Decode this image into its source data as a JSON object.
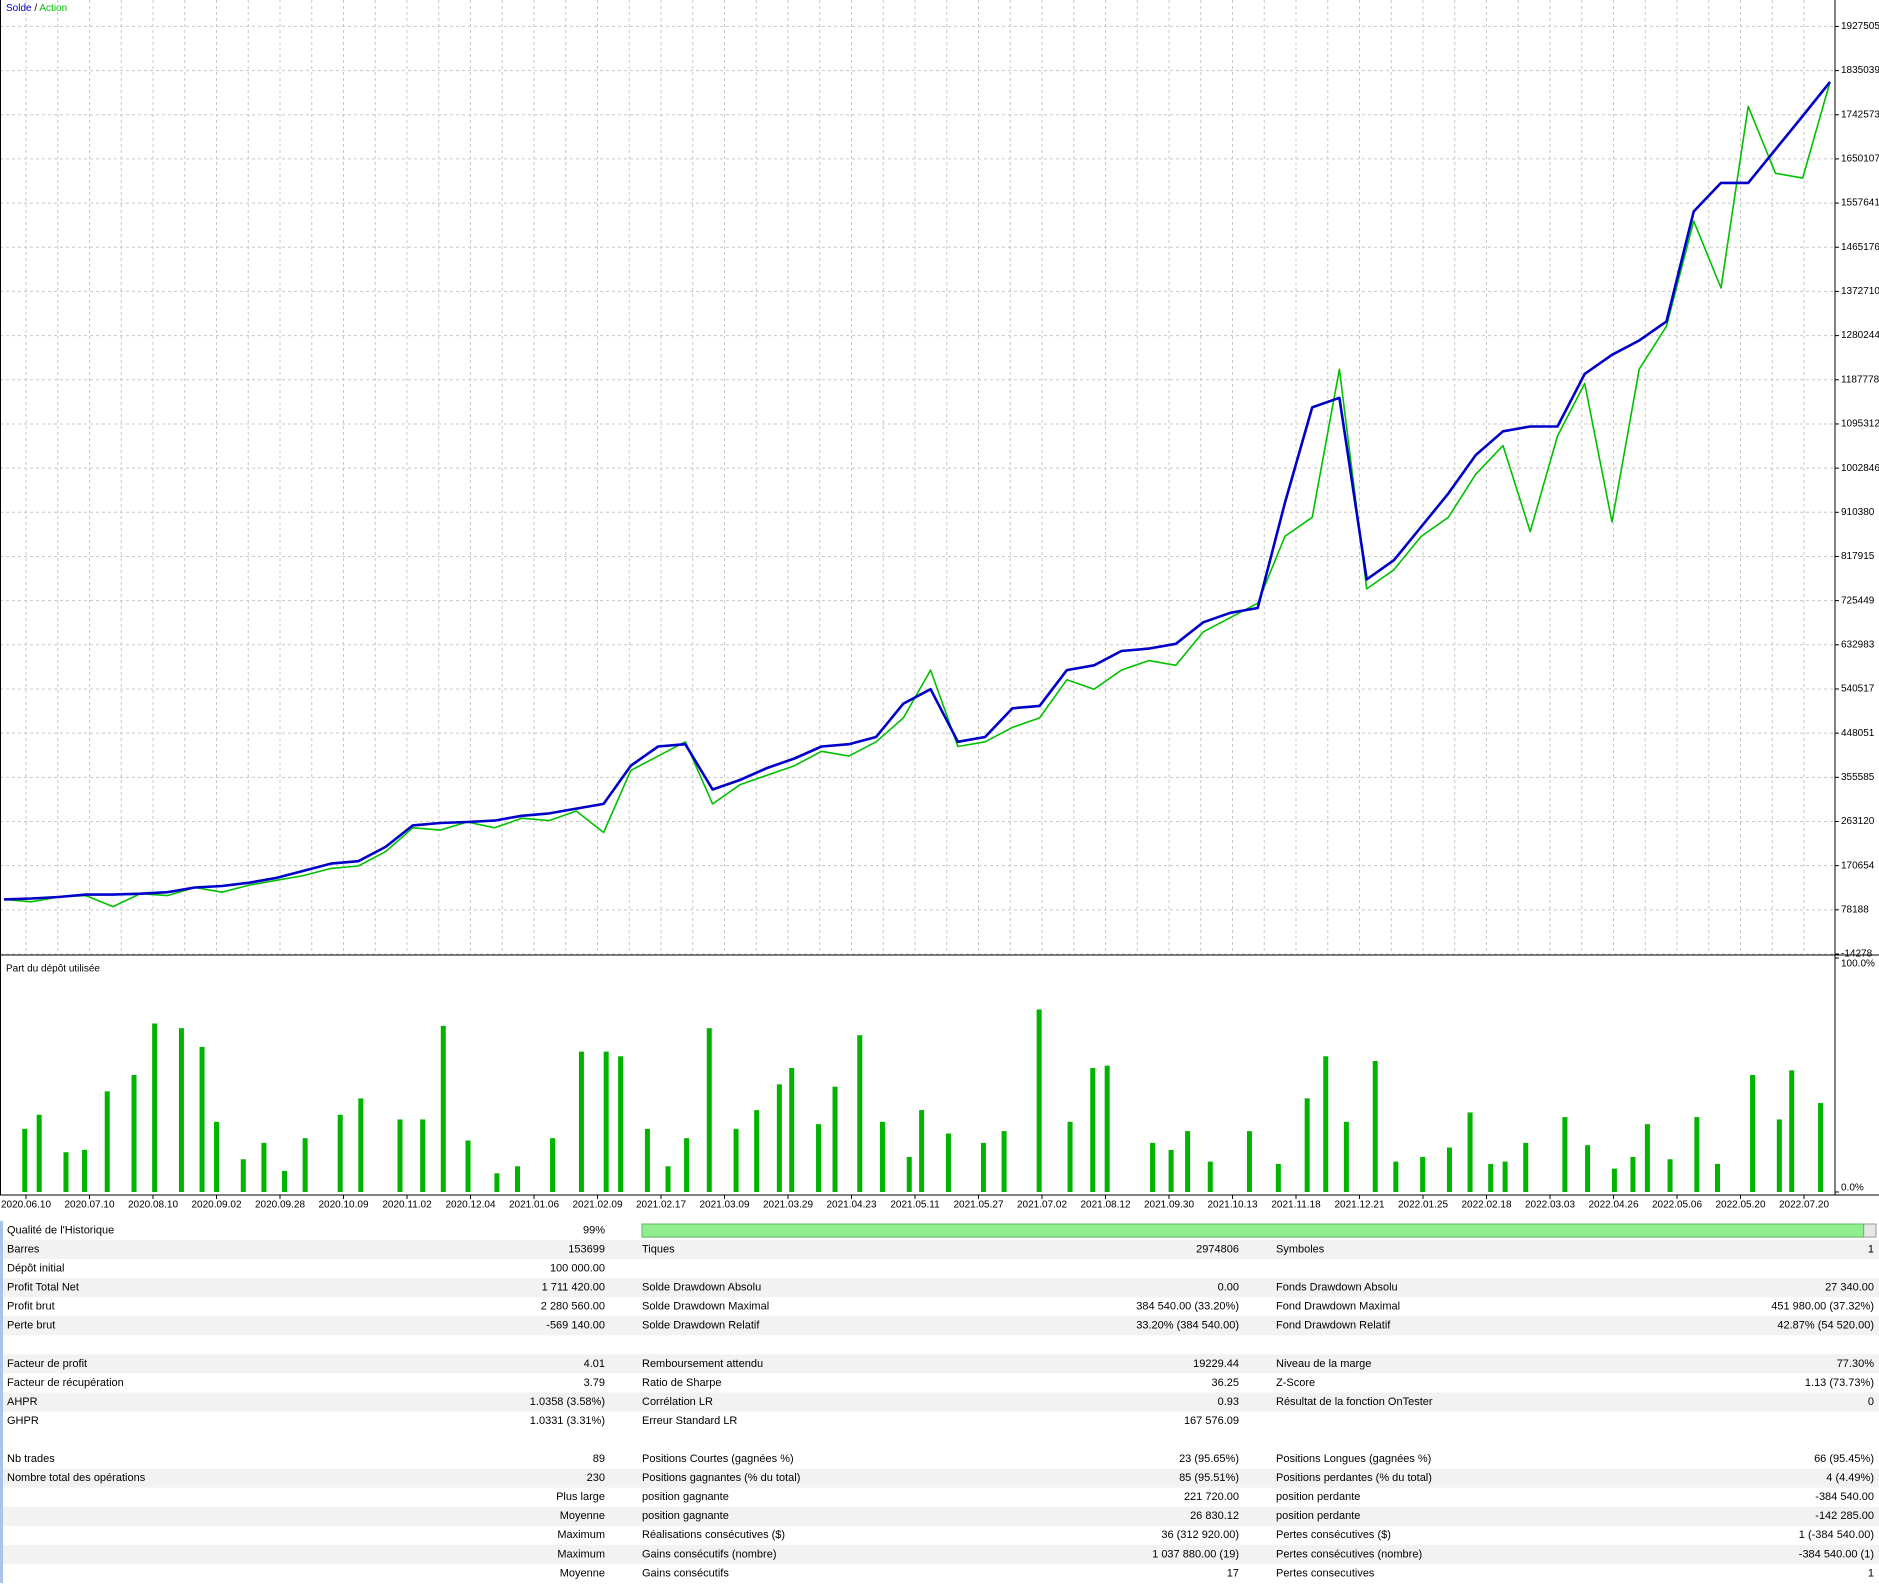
{
  "chart_data": [
    {
      "type": "line",
      "legend_separator": "/",
      "series": [
        {
          "name": "Solde",
          "color": "#0000c8",
          "values": [
            100000,
            102000,
            105000,
            110000,
            110000,
            112000,
            115000,
            125000,
            128000,
            135000,
            145000,
            160000,
            175000,
            180000,
            210000,
            255000,
            260000,
            262000,
            265000,
            275000,
            280000,
            290000,
            300000,
            380000,
            420000,
            425000,
            330000,
            350000,
            375000,
            395000,
            420000,
            425000,
            440000,
            510000,
            540000,
            430000,
            440000,
            500000,
            505000,
            580000,
            590000,
            620000,
            625000,
            635000,
            680000,
            700000,
            710000,
            930000,
            1130000,
            1150000,
            770000,
            810000,
            880000,
            950000,
            1030000,
            1080000,
            1090000,
            1090000,
            1200000,
            1240000,
            1270000,
            1310000,
            1540000,
            1600000,
            1600000,
            1670000,
            1740000,
            1811420
          ]
        },
        {
          "name": "Action",
          "color": "#00c000",
          "values": [
            100000,
            95000,
            105000,
            108000,
            85000,
            112000,
            108000,
            125000,
            115000,
            130000,
            140000,
            150000,
            165000,
            170000,
            200000,
            250000,
            245000,
            262000,
            250000,
            270000,
            265000,
            285000,
            240000,
            370000,
            400000,
            430000,
            300000,
            340000,
            360000,
            380000,
            410000,
            400000,
            430000,
            480000,
            580000,
            420000,
            430000,
            460000,
            480000,
            560000,
            540000,
            580000,
            600000,
            590000,
            660000,
            690000,
            720000,
            860000,
            900000,
            1210000,
            750000,
            790000,
            860000,
            900000,
            990000,
            1050000,
            870000,
            1070000,
            1180000,
            890000,
            1210000,
            1300000,
            1520000,
            1380000,
            1760000,
            1620000,
            1610000,
            1811420
          ]
        }
      ],
      "ylim": [
        -14278,
        1982795
      ],
      "yticks": [
        1927505,
        1835039,
        1742573,
        1650107,
        1557641,
        1465176,
        1372710,
        1280244,
        1187778,
        1095312,
        1002846,
        910380,
        817915,
        725449,
        632983,
        540517,
        448051,
        355585,
        263120,
        170654,
        78188,
        -14278
      ],
      "grid": true
    },
    {
      "type": "bar",
      "title": "Part du dépôt utilisée",
      "color": "#00b400",
      "x": [
        1.2,
        1.9,
        3.2,
        4.1,
        5.2,
        6.5,
        7.5,
        8.8,
        9.8,
        10.5,
        11.8,
        12.8,
        13.8,
        14.8,
        16.5,
        17.5,
        19.4,
        20.5,
        21.5,
        22.7,
        24.1,
        25.1,
        26.8,
        28.2,
        29.4,
        30.1,
        31.4,
        32.4,
        33.3,
        34.4,
        35.7,
        36.7,
        37.8,
        38.4,
        39.7,
        40.5,
        41.7,
        42.8,
        44.1,
        44.7,
        46.0,
        47.7,
        48.7,
        50.4,
        51.9,
        53.0,
        53.7,
        55.9,
        56.8,
        57.6,
        58.7,
        60.6,
        62.0,
        63.4,
        64.3,
        65.3,
        66.7,
        67.7,
        69.0,
        70.3,
        71.3,
        72.3,
        73.0,
        74.0,
        75.9,
        77.0,
        78.3,
        79.2,
        79.9,
        81.0,
        82.3,
        83.3,
        85.0,
        86.3,
        86.9,
        88.3
      ],
      "values": [
        27,
        33,
        17,
        18,
        43,
        50,
        72,
        70,
        62,
        30,
        14,
        21,
        9,
        23,
        33,
        40,
        31,
        31,
        71,
        22,
        8,
        11,
        23,
        60,
        60,
        58,
        27,
        11,
        23,
        70,
        27,
        35,
        46,
        53,
        29,
        45,
        67,
        30,
        15,
        35,
        25,
        21,
        26,
        78,
        30,
        53,
        54,
        21,
        18,
        26,
        13,
        26,
        12,
        40,
        58,
        30,
        56,
        13,
        15,
        19,
        34,
        12,
        13,
        21,
        32,
        20,
        10,
        15,
        29,
        14,
        32,
        12,
        50,
        31,
        52,
        38
      ],
      "xlim": [
        0,
        89
      ],
      "ylim": [
        0,
        100
      ],
      "yticks": [
        {
          "value": 100,
          "label": "100.0%"
        },
        {
          "value": 0,
          "label": "0.0%"
        }
      ],
      "date_labels": [
        "2020.06.10",
        "2020.07.10",
        "2020.08.10",
        "2020.09.02",
        "2020.09.28",
        "2020.10.09",
        "2020.11.02",
        "2020.12.04",
        "2021.01.06",
        "2021.02.09",
        "2021.02.17",
        "2021.03.09",
        "2021.03.29",
        "2021.04.23",
        "2021.05.11",
        "2021.05.27",
        "2021.07.02",
        "2021.08.12",
        "2021.09.30",
        "2021.10.13",
        "2021.11.18",
        "2021.12.21",
        "2022.01.25",
        "2022.02.18",
        "2022.03.03",
        "2022.04.26",
        "2022.05.06",
        "2022.05.20",
        "2022.07.20"
      ]
    }
  ],
  "report": {
    "quality_bar": 99,
    "sections": [
      [
        [
          "Qualité de l'Historique",
          "99%"
        ],
        [
          "Barres",
          "153699",
          "Tiques",
          "2974806",
          "Symboles",
          "1"
        ],
        [
          "Dépôt initial",
          "100 000.00"
        ],
        [
          "Profit Total Net",
          "1 711 420.00",
          "Solde Drawdown Absolu",
          "0.00",
          "Fonds Drawdown Absolu",
          "27 340.00"
        ],
        [
          "Profit brut",
          "2 280 560.00",
          "Solde Drawdown Maximal",
          "384 540.00 (33.20%)",
          "Fond Drawdown Maximal",
          "451 980.00 (37.32%)"
        ],
        [
          "Perte brut",
          "-569 140.00",
          "Solde Drawdown Relatif",
          "33.20% (384 540.00)",
          "Fond Drawdown Relatif",
          "42.87% (54 520.00)"
        ]
      ],
      [
        [
          "Facteur de profit",
          "4.01",
          "Remboursement attendu",
          "19229.44",
          "Niveau de la marge",
          "77.30%"
        ],
        [
          "Facteur de récupération",
          "3.79",
          "Ratio de Sharpe",
          "36.25",
          "Z-Score",
          "1.13 (73.73%)"
        ],
        [
          "AHPR",
          "1.0358 (3.58%)",
          "Corrélation LR",
          "0.93",
          "Résultat de la fonction OnTester",
          "0"
        ],
        [
          "GHPR",
          "1.0331 (3.31%)",
          "Erreur Standard LR",
          "167 576.09"
        ]
      ],
      [
        [
          "Nb trades",
          "89",
          "Positions Courtes (gagnées %)",
          "23 (95.65%)",
          "Positions Longues (gagnées %)",
          "66 (95.45%)"
        ],
        [
          "Nombre total des opérations",
          "230",
          "Positions gagnantes (% du total)",
          "85 (95.51%)",
          "Positions perdantes (% du total)",
          "4 (4.49%)"
        ],
        [
          null,
          "Plus large",
          "position gagnante",
          "221 720.00",
          "position perdante",
          "-384 540.00"
        ],
        [
          null,
          "Moyenne",
          "position gagnante",
          "26 830.12",
          "position perdante",
          "-142 285.00"
        ],
        [
          null,
          "Maximum",
          "Réalisations consécutives ($)",
          "36 (312 920.00)",
          "Pertes consécutives ($)",
          "1 (-384 540.00)"
        ],
        [
          null,
          "Maximum",
          "Gains consécutifs (nombre)",
          "1 037 880.00 (19)",
          "Pertes consécutives (nombre)",
          "-384 540.00 (1)"
        ],
        [
          null,
          "Moyenne",
          "Gains consécutifs",
          "17",
          "Pertes consecutives",
          "1"
        ]
      ]
    ]
  }
}
